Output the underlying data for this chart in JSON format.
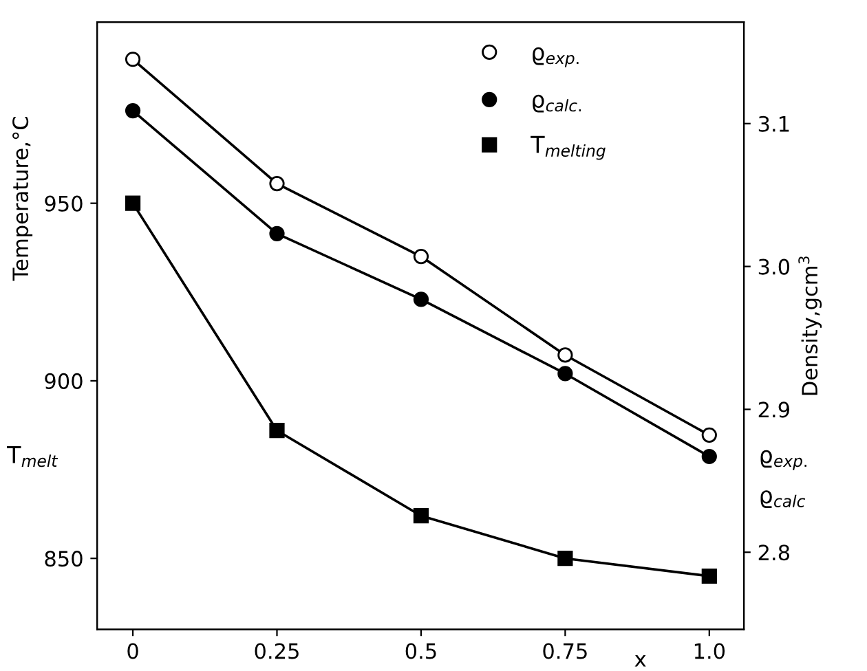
{
  "chart_data": {
    "type": "line",
    "xlabel": "x",
    "ylabel": "Temperature,°C",
    "y2label": "Density,gcm$^{3}$",
    "x": [
      0,
      0.25,
      0.5,
      0.75,
      1.0
    ],
    "series": [
      {
        "name": "ϱ$_{exp.}$",
        "color": "#ffffff",
        "marker": "circle",
        "axis": "y2",
        "values": [
          3.145,
          3.058,
          3.007,
          2.938,
          2.882
        ]
      },
      {
        "name": "ϱ$_{calc.}$",
        "color": "#000000",
        "marker": "circle",
        "axis": "y2",
        "values": [
          3.109,
          3.023,
          2.977,
          2.925,
          2.867
        ]
      },
      {
        "name": "T$_{melting}$",
        "color": "#000000",
        "marker": "square",
        "axis": "y",
        "values": [
          950,
          886,
          862,
          850,
          845
        ]
      }
    ],
    "xlim": [
      -0.062,
      1.06
    ],
    "xticks": [
      0,
      0.25,
      0.5,
      0.75,
      {
        "value": 1.0,
        "label": "1.0"
      }
    ],
    "ylim": [
      830,
      1001
    ],
    "yticks": [
      850,
      900,
      950
    ],
    "y2lim": [
      2.746,
      3.171
    ],
    "y2ticks": [
      2.8,
      2.9,
      {
        "value": 3.0,
        "label": "3.0"
      },
      3.1
    ],
    "annotations": [
      "T$_{melt}$",
      "ϱ$_{exp.}$",
      "ϱ$_{calc}$"
    ],
    "legend": "top right",
    "grid": false,
    "line_style": "solid"
  }
}
